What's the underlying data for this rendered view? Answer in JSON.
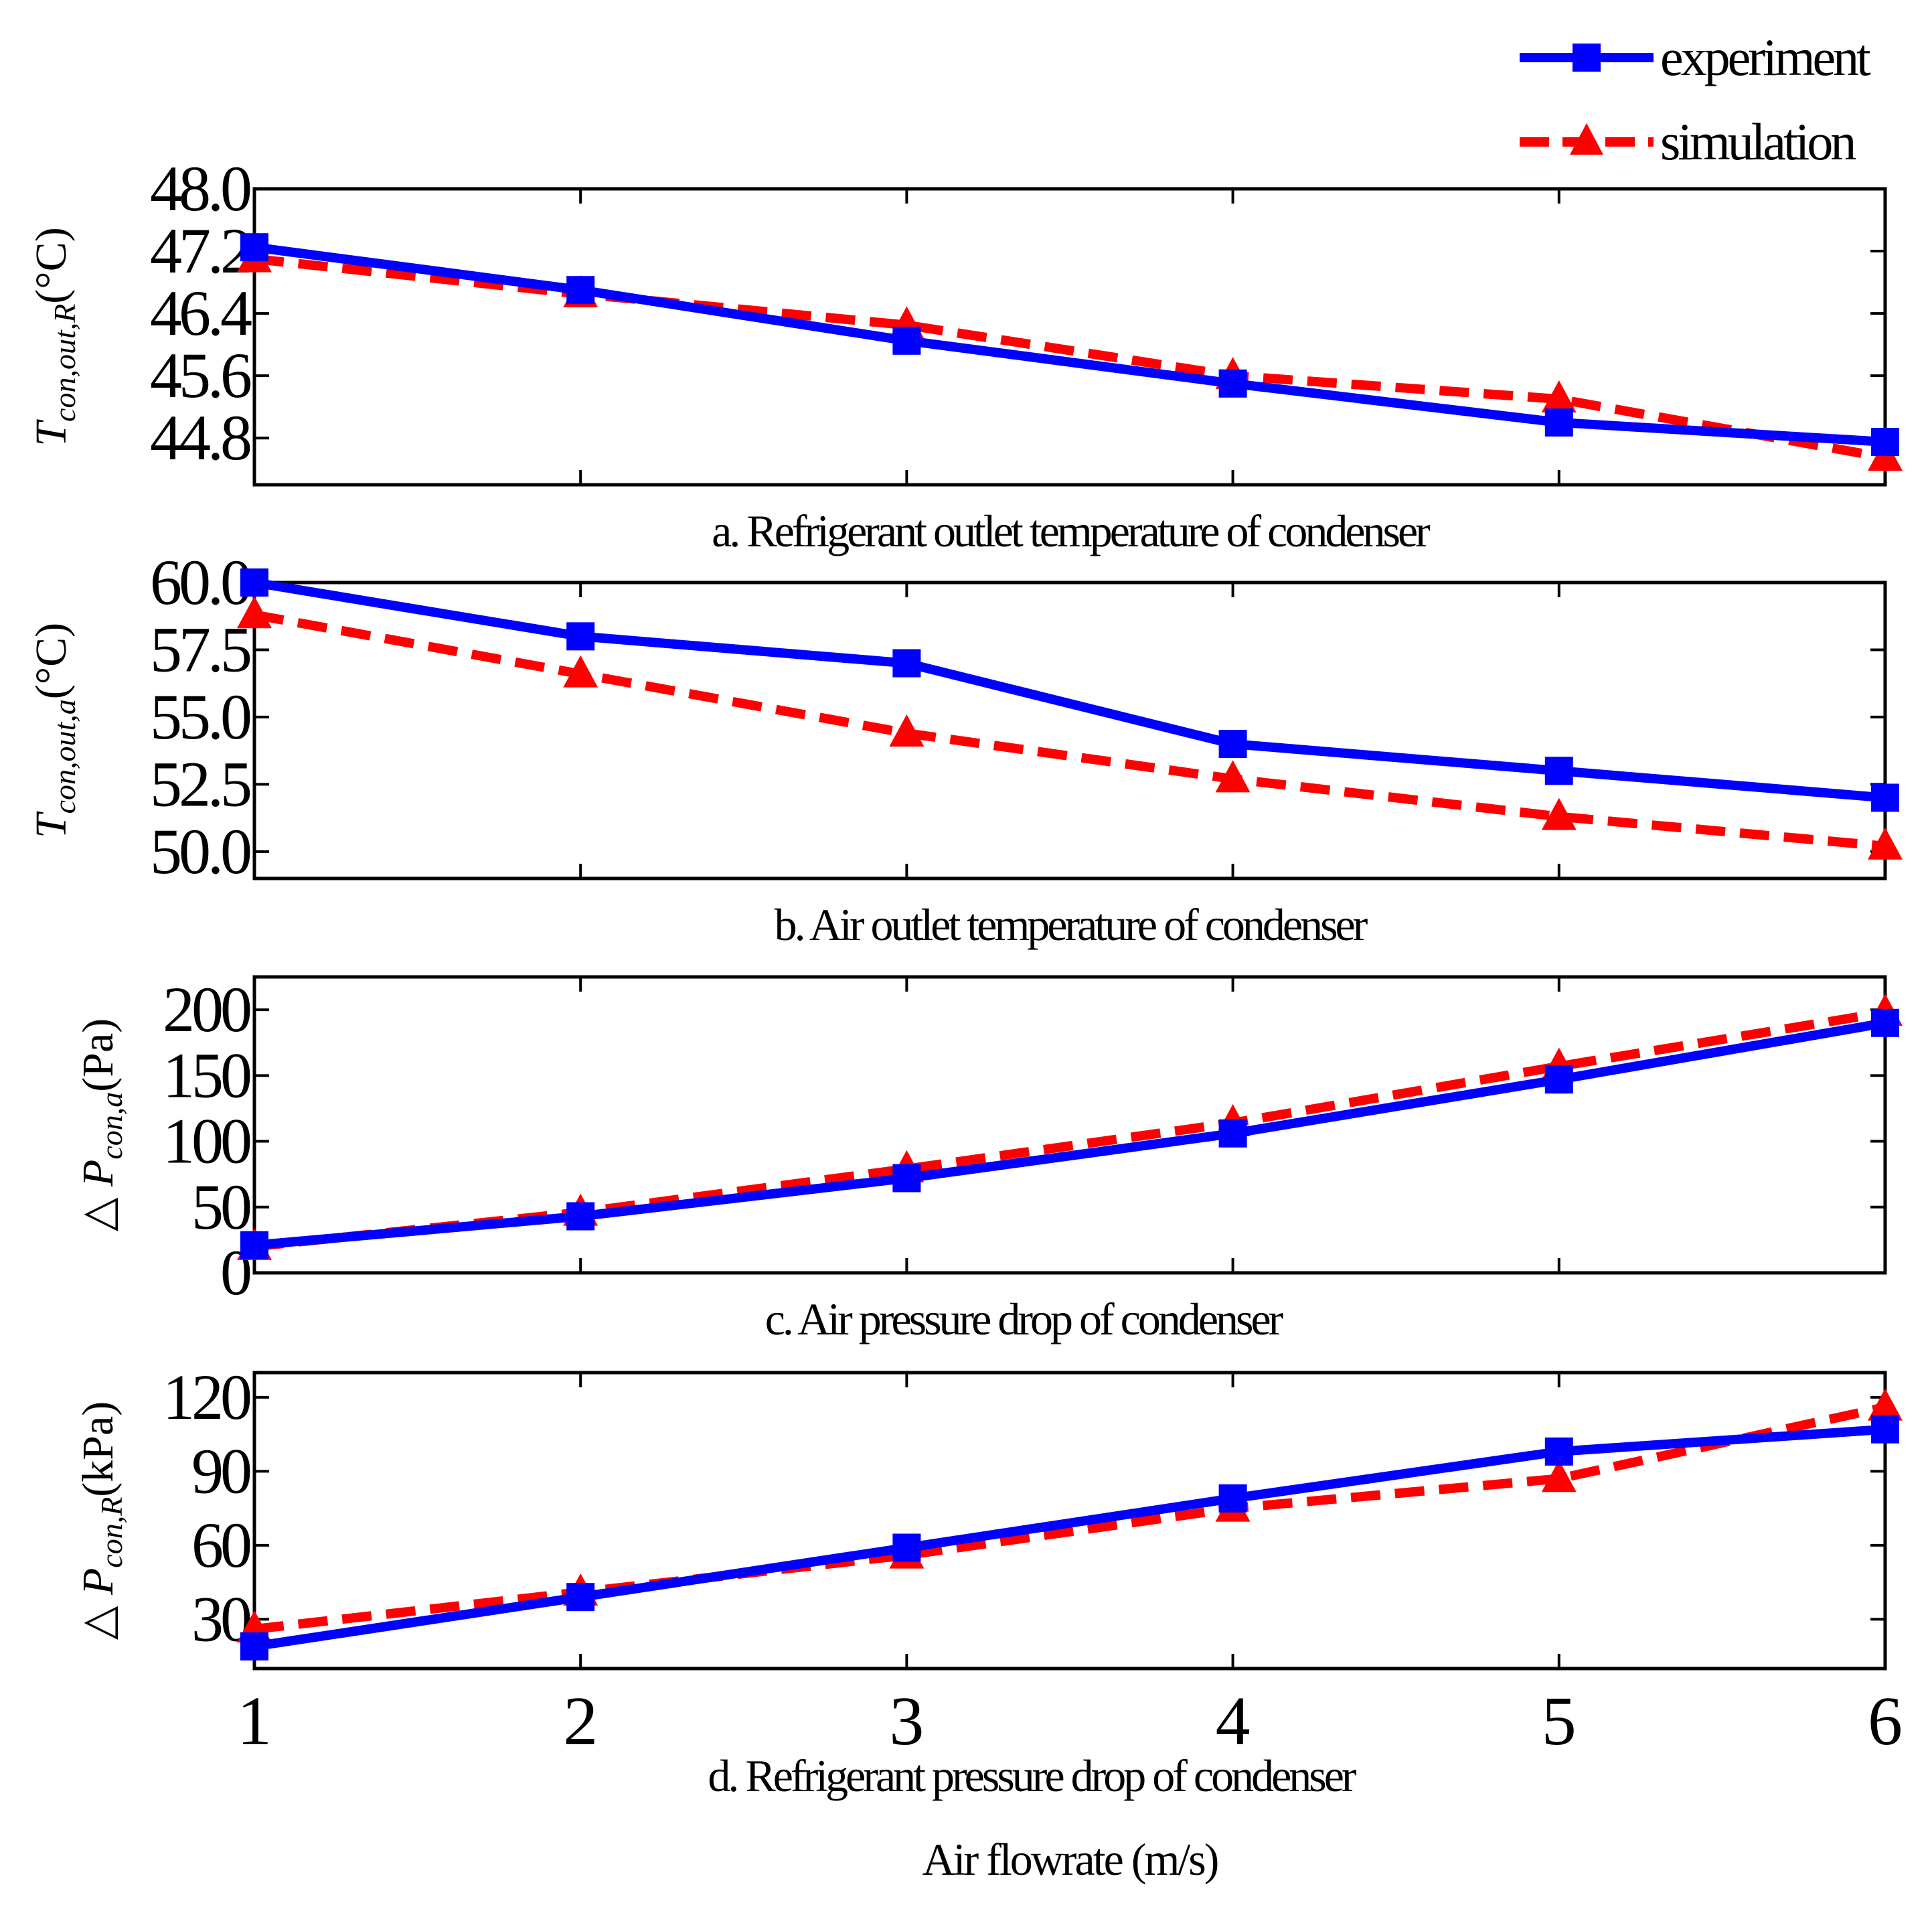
{
  "figure": {
    "xlabel": "Air flowrate  (m/s)",
    "legend": [
      {
        "label": "experiment",
        "color": "#0000ff",
        "marker": "square",
        "style": "solid"
      },
      {
        "label": "simulation",
        "color": "#ff0000",
        "marker": "triangle",
        "style": "dashed"
      }
    ]
  },
  "chart_data": [
    {
      "type": "line",
      "caption": "a. Refrigerant outlet temperature of condenser",
      "ylabel": {
        "prefix": "T",
        "sub": "con,out,R",
        "unit": "(°C)"
      },
      "x": [
        1,
        2,
        3,
        4,
        5,
        6
      ],
      "xlim": [
        1,
        6
      ],
      "ylim": [
        44.2,
        48.0
      ],
      "yticks": [
        44.8,
        45.6,
        46.4,
        47.2,
        48.0
      ],
      "ytick_labels": [
        "44.8",
        "45.6",
        "46.4",
        "47.2",
        "48.0"
      ],
      "series": [
        {
          "name": "experiment",
          "values": [
            47.25,
            46.7,
            46.05,
            45.5,
            45.0,
            44.75
          ]
        },
        {
          "name": "simulation",
          "values": [
            47.1,
            46.65,
            46.25,
            45.6,
            45.3,
            44.55
          ]
        }
      ]
    },
    {
      "type": "line",
      "caption": "b. Air outlet temperature of condenser",
      "ylabel": {
        "prefix": "T",
        "sub": "con,out,a",
        "unit": "(°C)"
      },
      "x": [
        1,
        2,
        3,
        4,
        5,
        6
      ],
      "xlim": [
        1,
        6
      ],
      "ylim": [
        49.0,
        60.0
      ],
      "yticks": [
        50.0,
        52.5,
        55.0,
        57.5,
        60.0
      ],
      "ytick_labels": [
        "50.0",
        "52.5",
        "55.0",
        "57.5",
        "60.0"
      ],
      "series": [
        {
          "name": "experiment",
          "values": [
            60.0,
            58.0,
            57.0,
            54.0,
            53.0,
            52.0
          ]
        },
        {
          "name": "simulation",
          "values": [
            58.8,
            56.6,
            54.4,
            52.7,
            51.3,
            50.2
          ]
        }
      ]
    },
    {
      "type": "line",
      "caption": "c. Air pressure drop of condenser",
      "ylabel": {
        "prefix": "△ P",
        "sub": "con,a",
        "unit": "(Pa)"
      },
      "x": [
        1,
        2,
        3,
        4,
        5,
        6
      ],
      "xlim": [
        1,
        6
      ],
      "ylim": [
        0,
        225
      ],
      "yticks": [
        0,
        50,
        100,
        150,
        200
      ],
      "ytick_labels": [
        "0",
        "50",
        "100",
        "150",
        "200"
      ],
      "series": [
        {
          "name": "experiment",
          "values": [
            21,
            43,
            72,
            106,
            147,
            190
          ]
        },
        {
          "name": "simulation",
          "values": [
            20,
            46,
            79,
            114,
            157,
            198
          ]
        }
      ]
    },
    {
      "type": "line",
      "caption": "d. Refrigerant pressure drop of condenser",
      "ylabel": {
        "prefix": "△ P",
        "sub": "con,R",
        "unit": "(kPa)"
      },
      "x": [
        1,
        2,
        3,
        4,
        5,
        6
      ],
      "xlim": [
        1,
        6
      ],
      "ylim": [
        10,
        130
      ],
      "yticks": [
        30,
        60,
        90,
        120
      ],
      "ytick_labels": [
        "30",
        "60",
        "90",
        "120"
      ],
      "xtick_labels": [
        "1",
        "2",
        "3",
        "4",
        "5",
        "6"
      ],
      "series": [
        {
          "name": "experiment",
          "values": [
            19,
            39,
            59,
            79,
            98,
            107
          ]
        },
        {
          "name": "simulation",
          "values": [
            26,
            41,
            56,
            75,
            87,
            116
          ]
        }
      ]
    }
  ]
}
